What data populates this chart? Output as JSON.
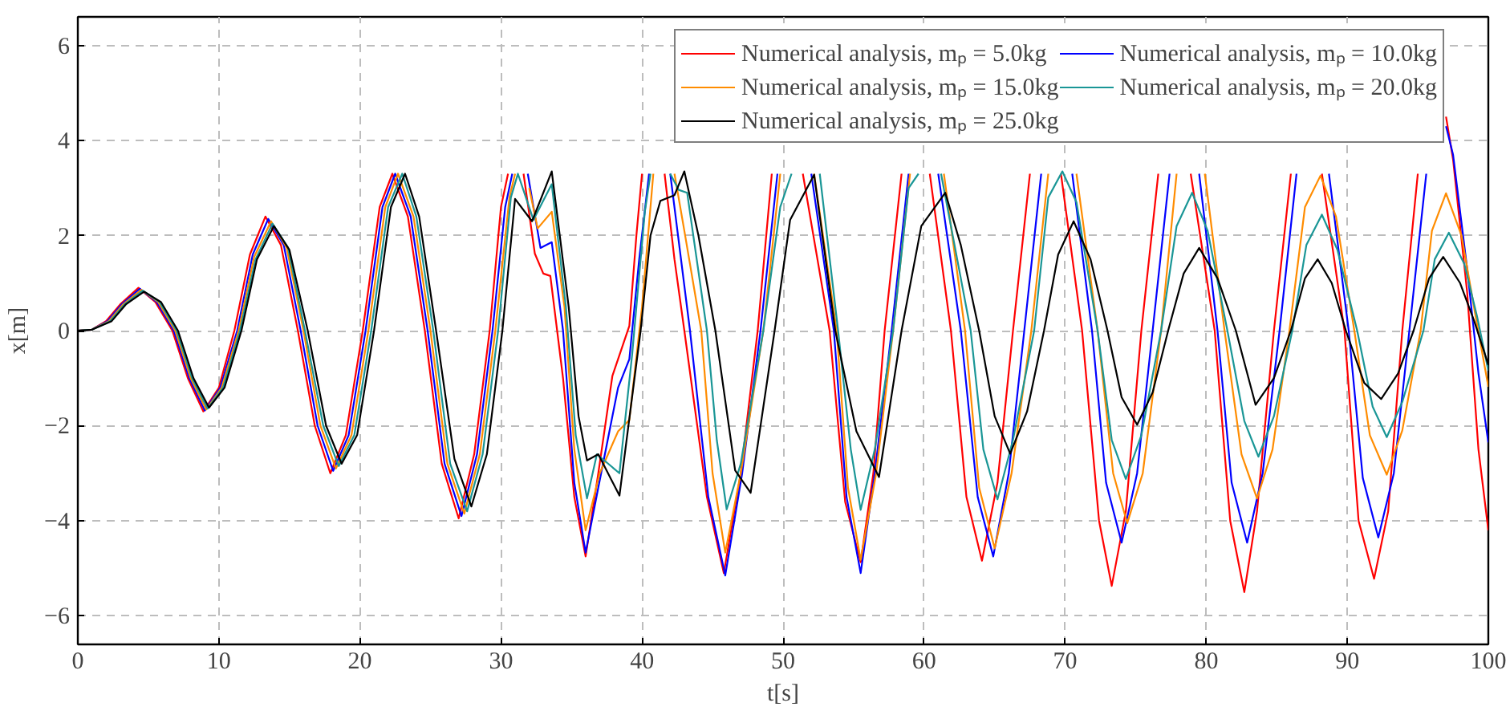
{
  "chart_data": {
    "type": "line",
    "xlabel": "t[s]",
    "ylabel": "x[m]",
    "xlim": [
      0,
      100
    ],
    "ylim": [
      -6.6,
      6.6
    ],
    "xticks": [
      0,
      10,
      20,
      30,
      40,
      50,
      60,
      70,
      80,
      90,
      100
    ],
    "yticks": [
      -6,
      -4,
      -2,
      0,
      2,
      4,
      6
    ],
    "grid": true,
    "legend": "top right",
    "line_style": "solid",
    "series": [
      {
        "name": "Numerical analysis, mₚ = 5.0kg",
        "color": "#ff0000",
        "x": [
          0,
          1,
          2,
          3,
          4.3,
          5.5,
          6.7,
          7.8,
          8.9,
          10,
          11.1,
          12.2,
          13.3,
          14.4,
          15.6,
          16.8,
          17.9,
          19,
          20.2,
          21.4,
          22.3,
          23.4,
          24.6,
          25.8,
          27.0,
          28.1,
          29.2,
          30.0,
          30.5,
          31.0,
          31.6,
          32.4,
          33.0,
          33.5,
          34.4,
          35.2,
          36.0,
          36.9,
          37.9,
          39.1,
          39.6,
          40.0,
          40.8,
          41.6,
          42.3,
          43.0,
          44.6,
          45.8,
          47.0,
          48.2,
          49.2,
          50.3,
          51.4,
          53.3,
          54.4,
          55.5,
          56.4,
          57.2,
          58.4,
          59.4,
          60.4,
          61.9,
          63.0,
          64.1,
          65.2,
          66.3,
          67.5,
          68.6,
          69.7,
          71.2,
          72.4,
          73.3,
          74.3,
          75.4,
          76.6,
          77.7,
          78.9,
          80.6,
          81.7,
          82.7,
          83.6,
          84.8,
          86.0,
          87.1,
          88.2,
          89.8,
          90.8,
          91.9,
          92.9,
          93.9,
          95.0,
          96.0,
          97.0,
          97.5,
          98.5,
          99.3,
          100
        ],
        "values": [
          0,
          0.02,
          0.2,
          0.55,
          0.9,
          0.6,
          0,
          -1.0,
          -1.7,
          -1.2,
          0,
          1.6,
          2.4,
          1.8,
          0,
          -2.0,
          -3.0,
          -2.2,
          0,
          2.6,
          3.3,
          2.4,
          0,
          -2.8,
          -3.95,
          -2.6,
          0,
          2.6,
          3.3,
          null,
          3.3,
          1.62,
          1.2,
          1.15,
          -1.0,
          -3.5,
          -4.75,
          -3.0,
          -0.95,
          0.1,
          2.0,
          3.3,
          null,
          3.3,
          1.5,
          0,
          -3.5,
          -5.1,
          -3.0,
          0,
          3.3,
          null,
          3.3,
          0,
          -3.6,
          -4.87,
          -3.0,
          0,
          3.3,
          null,
          3.3,
          0,
          -3.5,
          -4.84,
          -3.2,
          0,
          3.3,
          null,
          3.3,
          0,
          -4.0,
          -5.37,
          -3.8,
          0,
          3.3,
          null,
          3.3,
          0,
          -4.0,
          -5.5,
          -3.8,
          0,
          3.3,
          null,
          3.3,
          0,
          -4.0,
          -5.22,
          -3.8,
          0,
          3.3,
          null,
          4.5,
          3.6,
          0.8,
          -2.5,
          -4.2
        ]
      },
      {
        "name": "Numerical analysis, mₚ = 10.0kg",
        "color": "#0000ff",
        "x": [
          0,
          1,
          2.1,
          3.1,
          4.4,
          5.6,
          6.8,
          7.9,
          9.0,
          10.1,
          11.3,
          12.4,
          13.5,
          14.6,
          15.8,
          17.0,
          18.1,
          19.2,
          20.4,
          21.6,
          22.5,
          23.6,
          24.8,
          26.0,
          27.2,
          28.3,
          29.4,
          30.3,
          30.8,
          31.3,
          31.9,
          32.8,
          33.6,
          34.4,
          35.2,
          36.0,
          36.9,
          38.3,
          39.1,
          39.8,
          40.5,
          41.3,
          42.0,
          43.4,
          44.7,
          45.9,
          47.1,
          48.4,
          49.6,
          50.6,
          52.0,
          53.6,
          54.5,
          55.5,
          56.5,
          57.7,
          58.9,
          59.9,
          61.0,
          62.6,
          63.8,
          64.9,
          66.0,
          67.1,
          68.3,
          69.4,
          70.5,
          71.9,
          72.9,
          74.0,
          75.1,
          76.2,
          77.4,
          78.4,
          79.5,
          80.8,
          81.8,
          82.9,
          84.0,
          85.2,
          86.4,
          87.5,
          88.7,
          90.1,
          91.1,
          92.2,
          93.3,
          94.4,
          95.6,
          96.2,
          97.0,
          97.5,
          98.5,
          99.3,
          100
        ],
        "values": [
          0,
          0.02,
          0.2,
          0.55,
          0.88,
          0.6,
          0,
          -1.0,
          -1.68,
          -1.2,
          0,
          1.6,
          2.35,
          1.8,
          0,
          -2.0,
          -2.95,
          -2.2,
          0,
          2.6,
          3.3,
          2.4,
          0,
          -2.8,
          -3.9,
          -2.6,
          0,
          2.6,
          3.3,
          null,
          3.3,
          1.74,
          1.86,
          0,
          -3.2,
          -4.67,
          -3.3,
          -1.2,
          -0.6,
          1.5,
          3.3,
          null,
          3.3,
          0,
          -3.5,
          -5.15,
          -3.0,
          0,
          3.3,
          null,
          3.3,
          0,
          -3.5,
          -5.1,
          -3.0,
          0,
          3.3,
          null,
          3.3,
          0,
          -3.5,
          -4.75,
          -3.0,
          0,
          3.3,
          null,
          3.3,
          0,
          -3.2,
          -4.46,
          -3.0,
          0,
          3.3,
          null,
          3.3,
          0,
          -3.2,
          -4.46,
          -3.0,
          0,
          3.3,
          null,
          3.3,
          0,
          -3.1,
          -4.35,
          -3.0,
          0,
          3.3,
          null,
          4.3,
          3.7,
          1.3,
          -0.9,
          -2.35
        ]
      },
      {
        "name": "Numerical analysis, mₚ = 15.0kg",
        "color": "#ff8c00",
        "x": [
          0,
          1,
          2.2,
          3.2,
          4.5,
          5.7,
          6.9,
          8.0,
          9.1,
          10.2,
          11.4,
          12.5,
          13.7,
          14.8,
          16.0,
          17.2,
          18.3,
          19.4,
          20.6,
          21.8,
          22.7,
          23.8,
          25.0,
          26.2,
          27.4,
          28.5,
          29.6,
          30.6,
          31.0,
          31.5,
          32.0,
          32.6,
          33.6,
          34.5,
          35.2,
          36.0,
          37.0,
          38.3,
          39.1,
          40.0,
          40.8,
          41.5,
          42.3,
          43.0,
          44.2,
          45.0,
          45.9,
          47.0,
          48.6,
          49.8,
          50.8,
          52.2,
          53.8,
          54.6,
          55.5,
          56.6,
          57.8,
          59.0,
          60.2,
          61.4,
          62.9,
          63.9,
          65.0,
          66.2,
          67.6,
          68.8,
          69.8,
          70.8,
          72.3,
          73.4,
          74.4,
          75.5,
          76.8,
          77.9,
          78.9,
          79.9,
          81.3,
          82.5,
          83.6,
          84.7,
          85.9,
          87.0,
          88.1,
          89.2,
          90.5,
          91.6,
          92.8,
          93.9,
          95.2,
          96.0,
          97.0,
          98.1,
          99.1,
          100
        ],
        "values": [
          0,
          0.02,
          0.2,
          0.55,
          0.86,
          0.6,
          0,
          -1.0,
          -1.66,
          -1.2,
          0,
          1.55,
          2.3,
          1.75,
          0,
          -2.0,
          -2.9,
          -2.2,
          0,
          2.6,
          3.3,
          2.4,
          0,
          -2.8,
          -3.85,
          -2.6,
          0,
          2.8,
          3.3,
          null,
          3.0,
          2.15,
          2.5,
          0.5,
          -2.5,
          -4.2,
          -3.0,
          -2.12,
          -1.88,
          0.5,
          3.3,
          null,
          3.3,
          2.1,
          0,
          -3.0,
          -4.67,
          -3.0,
          0,
          3.3,
          null,
          3.3,
          0,
          -3.3,
          -4.82,
          -3.0,
          0,
          3.3,
          null,
          3.3,
          0,
          -3.3,
          -4.58,
          -3.0,
          0,
          3.3,
          null,
          3.3,
          0,
          -3.0,
          -4.05,
          -3.0,
          0,
          3.3,
          null,
          3.3,
          0,
          -2.6,
          -3.53,
          -2.5,
          0,
          2.6,
          3.26,
          2.4,
          0,
          -2.2,
          -3.03,
          -2.1,
          0,
          2.1,
          2.89,
          2.0,
          0.3,
          -1.18
        ]
      },
      {
        "name": "Numerical analysis, mₚ = 20.0kg",
        "color": "#1a9696",
        "x": [
          0,
          1,
          2.3,
          3.3,
          4.6,
          5.8,
          7.0,
          8.1,
          9.2,
          10.3,
          11.5,
          12.6,
          13.8,
          14.9,
          16.1,
          17.4,
          18.5,
          19.6,
          20.8,
          22.0,
          23.0,
          24.0,
          25.2,
          26.4,
          27.6,
          28.7,
          29.8,
          30.7,
          31.2,
          32.3,
          33.6,
          34.6,
          35.3,
          36.1,
          36.8,
          38.4,
          39.3,
          40.2,
          40.6,
          41.3,
          42.0,
          42.6,
          43.2,
          44.6,
          45.3,
          46.0,
          47.0,
          48.6,
          49.8,
          50.6,
          51.6,
          52.6,
          53.9,
          54.8,
          55.5,
          56.5,
          57.8,
          58.9,
          59.6,
          60.3,
          61.2,
          63.3,
          64.2,
          65.2,
          66.3,
          67.8,
          68.8,
          69.8,
          70.8,
          72.3,
          73.3,
          74.3,
          75.4,
          76.8,
          77.9,
          79.0,
          80.1,
          81.5,
          82.7,
          83.7,
          84.8,
          86.1,
          87.1,
          88.2,
          89.3,
          90.7,
          91.8,
          92.8,
          93.9,
          95.4,
          96.2,
          97.2,
          98.3,
          99.2,
          100
        ],
        "values": [
          0,
          0.02,
          0.2,
          0.55,
          0.84,
          0.6,
          0,
          -1.0,
          -1.64,
          -1.2,
          0,
          1.5,
          2.25,
          1.75,
          0,
          -2.0,
          -2.85,
          -2.2,
          0,
          2.6,
          3.3,
          2.4,
          0,
          -2.8,
          -3.8,
          -2.6,
          0,
          2.8,
          3.3,
          2.33,
          3.08,
          0.5,
          -2.2,
          -3.53,
          -2.6,
          -3.0,
          -0.5,
          2.5,
          3.3,
          null,
          3.3,
          2.96,
          2.9,
          0,
          -2.3,
          -3.76,
          -2.8,
          0,
          2.6,
          3.3,
          null,
          3.3,
          0,
          -2.5,
          -3.77,
          -2.5,
          0,
          3.0,
          3.3,
          null,
          3.3,
          0,
          -2.5,
          -3.55,
          -2.3,
          0,
          2.8,
          3.35,
          2.7,
          0,
          -2.3,
          -3.12,
          -2.2,
          0,
          2.2,
          2.9,
          2.1,
          0,
          -1.9,
          -2.65,
          -1.8,
          0,
          1.8,
          2.44,
          1.7,
          0,
          -1.6,
          -2.24,
          -1.5,
          0,
          1.5,
          2.06,
          1.4,
          0.3,
          -0.84
        ]
      },
      {
        "name": "Numerical analysis, mₚ = 25.0kg",
        "color": "#000000",
        "x": [
          0,
          1,
          2.4,
          3.4,
          4.7,
          5.9,
          7.1,
          8.2,
          9.3,
          10.4,
          11.6,
          12.7,
          13.9,
          15.0,
          16.3,
          17.6,
          18.7,
          19.8,
          21.0,
          22.2,
          23.2,
          24.2,
          25.4,
          26.7,
          27.9,
          29.0,
          30.1,
          31.0,
          32.2,
          33.6,
          34.8,
          35.5,
          36.1,
          36.9,
          38.4,
          39.9,
          40.6,
          41.3,
          42.3,
          43.0,
          44.0,
          45.2,
          46.6,
          47.7,
          49.4,
          50.5,
          52.2,
          53.7,
          55.2,
          56.8,
          58.4,
          59.8,
          61.5,
          62.6,
          63.9,
          65.0,
          66.1,
          67.3,
          68.5,
          69.5,
          70.6,
          71.8,
          73.0,
          74.0,
          75.1,
          76.2,
          77.3,
          78.4,
          79.5,
          80.8,
          82.1,
          83.5,
          84.8,
          86.0,
          87.0,
          87.9,
          88.9,
          89.9,
          91.2,
          92.4,
          93.6,
          94.7,
          95.8,
          96.8,
          98.0,
          99.0,
          100
        ],
        "values": [
          0,
          0.02,
          0.2,
          0.55,
          0.82,
          0.6,
          0,
          -1.0,
          -1.62,
          -1.2,
          0,
          1.5,
          2.2,
          1.7,
          0,
          -2.0,
          -2.8,
          -2.2,
          0,
          2.6,
          3.3,
          2.4,
          0,
          -2.7,
          -3.7,
          -2.6,
          0,
          2.77,
          2.3,
          3.35,
          0.5,
          -1.8,
          -2.73,
          -2.6,
          -3.47,
          0,
          2.0,
          2.73,
          2.85,
          3.35,
          2.0,
          0,
          -2.94,
          -3.41,
          0,
          2.33,
          3.28,
          0,
          -2.12,
          -3.08,
          0,
          2.2,
          2.9,
          1.8,
          0,
          -1.8,
          -2.59,
          -1.7,
          0,
          1.6,
          2.3,
          1.5,
          0,
          -1.4,
          -1.98,
          -1.3,
          0,
          1.2,
          1.74,
          1.1,
          0,
          -1.56,
          -1.0,
          0,
          1.1,
          1.5,
          1.0,
          0,
          -1.1,
          -1.44,
          -0.9,
          0,
          1.1,
          1.55,
          1.0,
          0.2,
          -0.72
        ]
      }
    ]
  }
}
